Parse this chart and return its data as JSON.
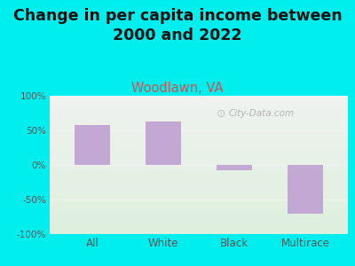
{
  "title": "Change in per capita income between\n2000 and 2022",
  "subtitle": "Woodlawn, VA",
  "categories": [
    "All",
    "White",
    "Black",
    "Multirace"
  ],
  "values": [
    58,
    63,
    -8,
    -70
  ],
  "bar_color": "#c4a8d4",
  "background_color": "#00EEEE",
  "plot_bg_top": "#f0f2ee",
  "plot_bg_bottom": "#ddeedd",
  "ylim": [
    -100,
    100
  ],
  "yticks": [
    -100,
    -50,
    0,
    50,
    100
  ],
  "ytick_labels": [
    "-100%",
    "-50%",
    "0%",
    "50%",
    "100%"
  ],
  "title_fontsize": 12.5,
  "subtitle_fontsize": 10.5,
  "subtitle_color": "#cc5555",
  "tick_color": "#555555",
  "watermark": "City-Data.com",
  "bar_width": 0.5
}
